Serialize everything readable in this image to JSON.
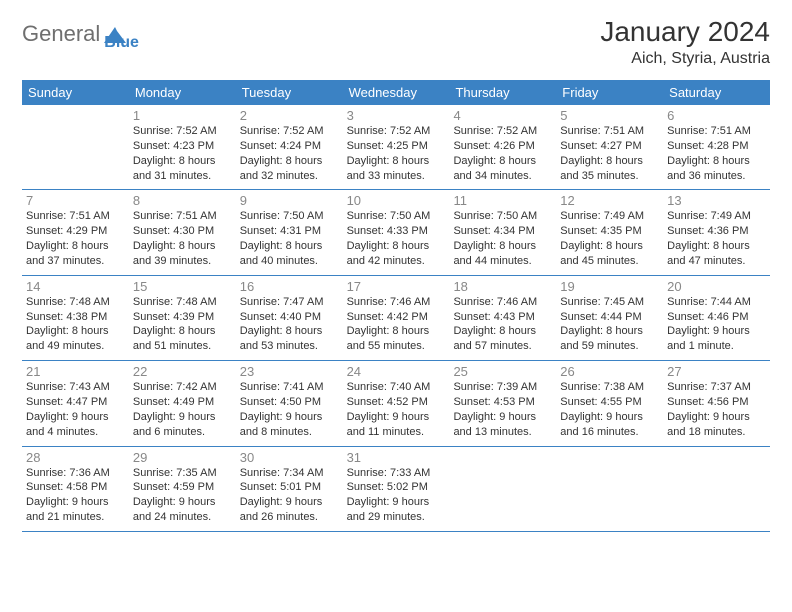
{
  "logo": {
    "part1": "General",
    "part2": "Blue"
  },
  "title": "January 2024",
  "location": "Aich, Styria, Austria",
  "colors": {
    "brand": "#3b82c4",
    "text": "#333333",
    "muted": "#888888",
    "logo_gray": "#6f6f6f",
    "bg": "#ffffff"
  },
  "dow": [
    "Sunday",
    "Monday",
    "Tuesday",
    "Wednesday",
    "Thursday",
    "Friday",
    "Saturday"
  ],
  "calendar": {
    "type": "table",
    "columns": 7,
    "first_day_col": 1,
    "days": {
      "1": {
        "sunrise": "7:52 AM",
        "sunset": "4:23 PM",
        "daylight": "8 hours and 31 minutes."
      },
      "2": {
        "sunrise": "7:52 AM",
        "sunset": "4:24 PM",
        "daylight": "8 hours and 32 minutes."
      },
      "3": {
        "sunrise": "7:52 AM",
        "sunset": "4:25 PM",
        "daylight": "8 hours and 33 minutes."
      },
      "4": {
        "sunrise": "7:52 AM",
        "sunset": "4:26 PM",
        "daylight": "8 hours and 34 minutes."
      },
      "5": {
        "sunrise": "7:51 AM",
        "sunset": "4:27 PM",
        "daylight": "8 hours and 35 minutes."
      },
      "6": {
        "sunrise": "7:51 AM",
        "sunset": "4:28 PM",
        "daylight": "8 hours and 36 minutes."
      },
      "7": {
        "sunrise": "7:51 AM",
        "sunset": "4:29 PM",
        "daylight": "8 hours and 37 minutes."
      },
      "8": {
        "sunrise": "7:51 AM",
        "sunset": "4:30 PM",
        "daylight": "8 hours and 39 minutes."
      },
      "9": {
        "sunrise": "7:50 AM",
        "sunset": "4:31 PM",
        "daylight": "8 hours and 40 minutes."
      },
      "10": {
        "sunrise": "7:50 AM",
        "sunset": "4:33 PM",
        "daylight": "8 hours and 42 minutes."
      },
      "11": {
        "sunrise": "7:50 AM",
        "sunset": "4:34 PM",
        "daylight": "8 hours and 44 minutes."
      },
      "12": {
        "sunrise": "7:49 AM",
        "sunset": "4:35 PM",
        "daylight": "8 hours and 45 minutes."
      },
      "13": {
        "sunrise": "7:49 AM",
        "sunset": "4:36 PM",
        "daylight": "8 hours and 47 minutes."
      },
      "14": {
        "sunrise": "7:48 AM",
        "sunset": "4:38 PM",
        "daylight": "8 hours and 49 minutes."
      },
      "15": {
        "sunrise": "7:48 AM",
        "sunset": "4:39 PM",
        "daylight": "8 hours and 51 minutes."
      },
      "16": {
        "sunrise": "7:47 AM",
        "sunset": "4:40 PM",
        "daylight": "8 hours and 53 minutes."
      },
      "17": {
        "sunrise": "7:46 AM",
        "sunset": "4:42 PM",
        "daylight": "8 hours and 55 minutes."
      },
      "18": {
        "sunrise": "7:46 AM",
        "sunset": "4:43 PM",
        "daylight": "8 hours and 57 minutes."
      },
      "19": {
        "sunrise": "7:45 AM",
        "sunset": "4:44 PM",
        "daylight": "8 hours and 59 minutes."
      },
      "20": {
        "sunrise": "7:44 AM",
        "sunset": "4:46 PM",
        "daylight": "9 hours and 1 minute."
      },
      "21": {
        "sunrise": "7:43 AM",
        "sunset": "4:47 PM",
        "daylight": "9 hours and 4 minutes."
      },
      "22": {
        "sunrise": "7:42 AM",
        "sunset": "4:49 PM",
        "daylight": "9 hours and 6 minutes."
      },
      "23": {
        "sunrise": "7:41 AM",
        "sunset": "4:50 PM",
        "daylight": "9 hours and 8 minutes."
      },
      "24": {
        "sunrise": "7:40 AM",
        "sunset": "4:52 PM",
        "daylight": "9 hours and 11 minutes."
      },
      "25": {
        "sunrise": "7:39 AM",
        "sunset": "4:53 PM",
        "daylight": "9 hours and 13 minutes."
      },
      "26": {
        "sunrise": "7:38 AM",
        "sunset": "4:55 PM",
        "daylight": "9 hours and 16 minutes."
      },
      "27": {
        "sunrise": "7:37 AM",
        "sunset": "4:56 PM",
        "daylight": "9 hours and 18 minutes."
      },
      "28": {
        "sunrise": "7:36 AM",
        "sunset": "4:58 PM",
        "daylight": "9 hours and 21 minutes."
      },
      "29": {
        "sunrise": "7:35 AM",
        "sunset": "4:59 PM",
        "daylight": "9 hours and 24 minutes."
      },
      "30": {
        "sunrise": "7:34 AM",
        "sunset": "5:01 PM",
        "daylight": "9 hours and 26 minutes."
      },
      "31": {
        "sunrise": "7:33 AM",
        "sunset": "5:02 PM",
        "daylight": "9 hours and 29 minutes."
      }
    }
  },
  "labels": {
    "sunrise": "Sunrise: ",
    "sunset": "Sunset: ",
    "daylight": "Daylight: "
  }
}
